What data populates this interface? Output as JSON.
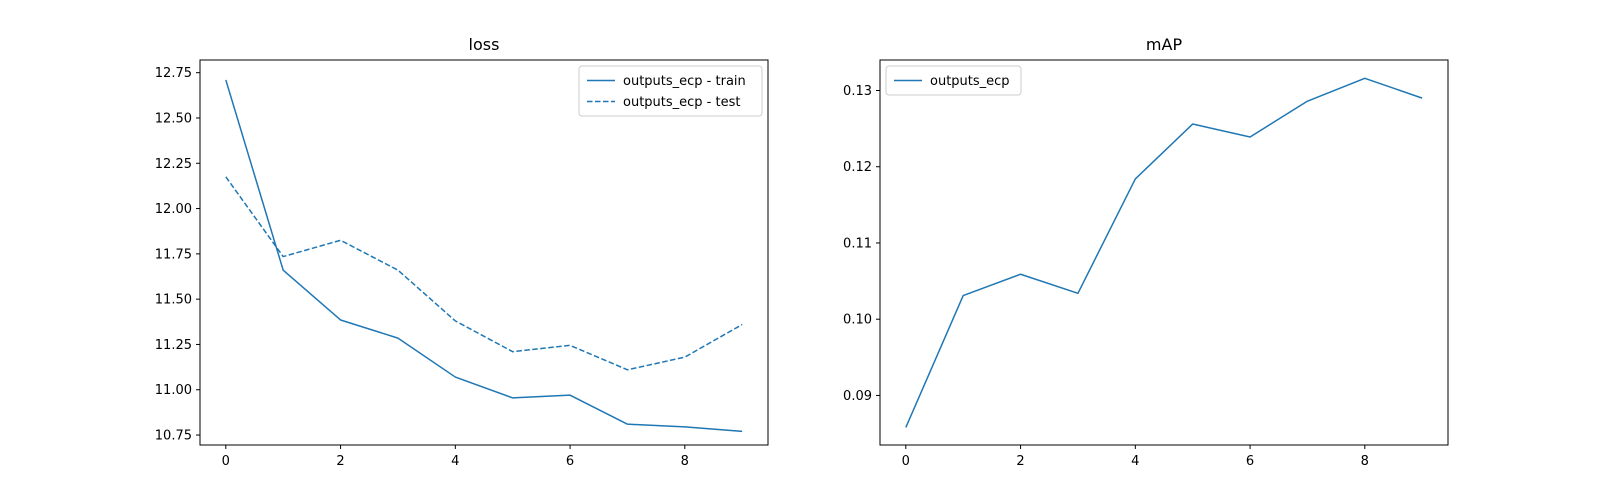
{
  "chart_data": [
    {
      "type": "line",
      "title": "loss",
      "xlabel": "",
      "ylabel": "",
      "xlim": [
        -0.45,
        9.45
      ],
      "ylim": [
        10.695,
        12.82
      ],
      "xticks": [
        0,
        2,
        4,
        6,
        8
      ],
      "xtick_labels": [
        "0",
        "2",
        "4",
        "6",
        "8"
      ],
      "yticks": [
        10.75,
        11.0,
        11.25,
        11.5,
        11.75,
        12.0,
        12.25,
        12.5,
        12.75
      ],
      "ytick_labels": [
        "10.75",
        "11.00",
        "11.25",
        "11.50",
        "11.75",
        "12.00",
        "12.25",
        "12.50",
        "12.75"
      ],
      "grid": false,
      "legend_position": "top-right",
      "x": [
        0,
        1,
        2,
        3,
        4,
        5,
        6,
        7,
        8,
        9
      ],
      "series": [
        {
          "name": "outputs_ecp - train",
          "style": "solid",
          "color": "#1f77b4",
          "values": [
            12.71,
            11.66,
            11.385,
            11.285,
            11.07,
            10.955,
            10.97,
            10.81,
            10.795,
            10.77
          ]
        },
        {
          "name": "outputs_ecp - test",
          "style": "dashed",
          "color": "#1f77b4",
          "values": [
            12.175,
            11.735,
            11.825,
            11.66,
            11.38,
            11.21,
            11.245,
            11.11,
            11.18,
            11.36
          ]
        }
      ]
    },
    {
      "type": "line",
      "title": "mAP",
      "xlabel": "",
      "ylabel": "",
      "xlim": [
        -0.45,
        9.45
      ],
      "ylim": [
        0.0835,
        0.134
      ],
      "xticks": [
        0,
        2,
        4,
        6,
        8
      ],
      "xtick_labels": [
        "0",
        "2",
        "4",
        "6",
        "8"
      ],
      "yticks": [
        0.09,
        0.1,
        0.11,
        0.12,
        0.13
      ],
      "ytick_labels": [
        "0.09",
        "0.10",
        "0.11",
        "0.12",
        "0.13"
      ],
      "grid": false,
      "legend_position": "top-left",
      "x": [
        0,
        1,
        2,
        3,
        4,
        5,
        6,
        7,
        8,
        9
      ],
      "series": [
        {
          "name": "outputs_ecp",
          "style": "solid",
          "color": "#1f77b4",
          "values": [
            0.0858,
            0.1031,
            0.1059,
            0.1034,
            0.1184,
            0.1256,
            0.1239,
            0.1286,
            0.1316,
            0.129
          ]
        }
      ]
    }
  ]
}
